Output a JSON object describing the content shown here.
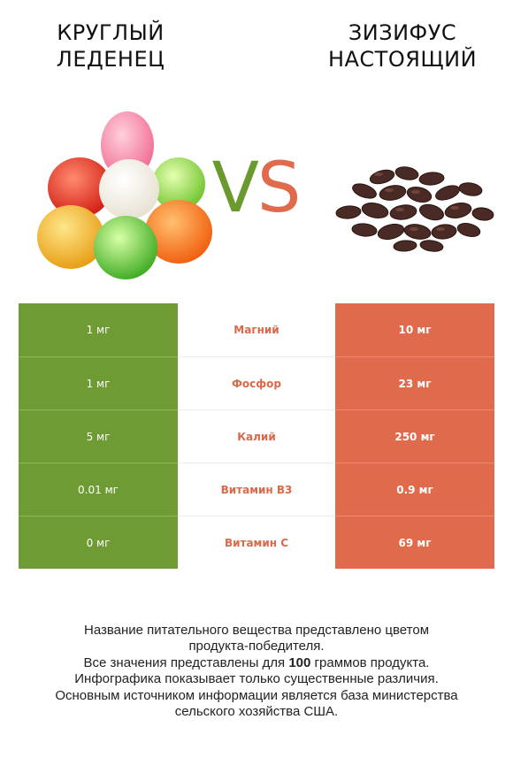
{
  "left_title": [
    "КРУГЛЫЙ",
    "ЛЕДЕНЕЦ"
  ],
  "right_title": [
    "ЗИЗИФУС",
    "НАСТОЯЩИЙ"
  ],
  "vs": {
    "v": "V",
    "s": "S"
  },
  "colors": {
    "left": "#6f9b35",
    "right": "#e06a4c",
    "nutrient_text": "#d9694b"
  },
  "rows": [
    {
      "left": "1 мг",
      "nutrient": "Магний",
      "right": "10 мг"
    },
    {
      "left": "1 мг",
      "nutrient": "Фосфор",
      "right": "23 мг"
    },
    {
      "left": "5 мг",
      "nutrient": "Калий",
      "right": "250 мг"
    },
    {
      "left": "0.01 мг",
      "nutrient": "Витамин B3",
      "right": "0.9 мг"
    },
    {
      "left": "0 мг",
      "nutrient": "Витамин C",
      "right": "69 мг"
    }
  ],
  "footer": {
    "line1": "Название питательного вещества представлено цветом",
    "line2": "продукта-победителя.",
    "line3_pre": "Все значения представлены для ",
    "line3_bold": "100",
    "line3_post": " граммов продукта.",
    "line4": "Инфографика показывает только существенные различия.",
    "line5": "Основным источником информации является база министерства",
    "line6": "сельского хозяйства США."
  }
}
